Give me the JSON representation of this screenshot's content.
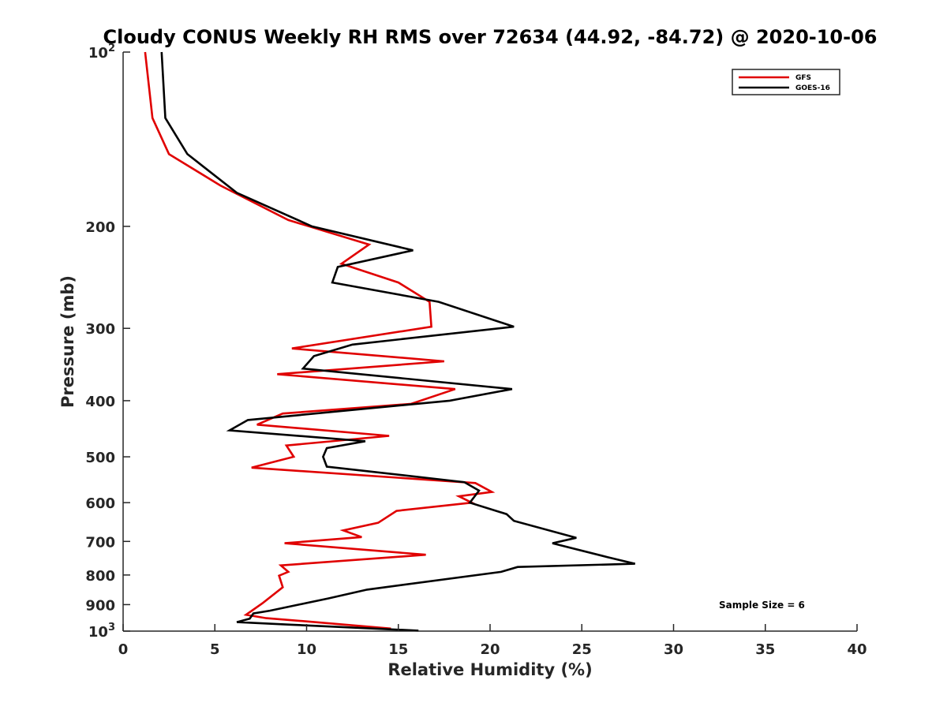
{
  "chart_data": {
    "type": "line",
    "title": "Cloudy CONUS Weekly RH RMS over 72634 (44.92, -84.72) @ 2020-10-06",
    "xlabel": "Relative Humidity (%)",
    "ylabel": "Pressure (mb)",
    "xlim": [
      0,
      40
    ],
    "ylim": [
      100,
      1000
    ],
    "yscale": "log",
    "y_reversed": true,
    "x_ticks": [
      0,
      5,
      10,
      15,
      20,
      25,
      30,
      35,
      40
    ],
    "y_ticks": [
      {
        "value": 100,
        "base": "10",
        "exp": "2"
      },
      {
        "value": 200,
        "label": "200"
      },
      {
        "value": 300,
        "label": "300"
      },
      {
        "value": 400,
        "label": "400"
      },
      {
        "value": 500,
        "label": "500"
      },
      {
        "value": 600,
        "label": "600"
      },
      {
        "value": 700,
        "label": "700"
      },
      {
        "value": 800,
        "label": "800"
      },
      {
        "value": 900,
        "label": "900"
      },
      {
        "value": 1000,
        "base": "10",
        "exp": "3"
      }
    ],
    "legend_position": "top-right",
    "annotation": "Sample Size = 6",
    "series": [
      {
        "name": "GFS",
        "color": "#e00000",
        "points": [
          [
            1.2,
            100
          ],
          [
            1.6,
            130
          ],
          [
            2.5,
            150
          ],
          [
            5.3,
            170
          ],
          [
            9.0,
            195
          ],
          [
            13.4,
            215
          ],
          [
            11.9,
            232
          ],
          [
            15.0,
            250
          ],
          [
            16.7,
            270
          ],
          [
            16.8,
            298
          ],
          [
            9.2,
            325
          ],
          [
            17.5,
            342
          ],
          [
            8.4,
            360
          ],
          [
            18.1,
            382
          ],
          [
            15.7,
            405
          ],
          [
            8.7,
            421
          ],
          [
            7.3,
            440
          ],
          [
            14.5,
            460
          ],
          [
            8.9,
            478
          ],
          [
            9.3,
            500
          ],
          [
            7.0,
            522
          ],
          [
            19.2,
            555
          ],
          [
            20.1,
            575
          ],
          [
            18.3,
            585
          ],
          [
            19.0,
            600
          ],
          [
            14.9,
            620
          ],
          [
            13.9,
            650
          ],
          [
            12.0,
            670
          ],
          [
            13.0,
            688
          ],
          [
            8.8,
            705
          ],
          [
            16.5,
            738
          ],
          [
            8.6,
            770
          ],
          [
            9.0,
            790
          ],
          [
            8.5,
            802
          ],
          [
            8.7,
            840
          ],
          [
            7.6,
            895
          ],
          [
            6.7,
            937
          ],
          [
            7.8,
            950
          ],
          [
            10.0,
            962
          ],
          [
            14.6,
            990
          ]
        ]
      },
      {
        "name": "GOES-16",
        "color": "#000000",
        "points": [
          [
            2.1,
            100
          ],
          [
            2.3,
            130
          ],
          [
            3.5,
            150
          ],
          [
            6.2,
            175
          ],
          [
            10.3,
            200
          ],
          [
            15.8,
            220
          ],
          [
            11.7,
            235
          ],
          [
            11.4,
            250
          ],
          [
            17.2,
            270
          ],
          [
            21.3,
            298
          ],
          [
            12.5,
            320
          ],
          [
            10.4,
            335
          ],
          [
            9.8,
            352
          ],
          [
            21.2,
            382
          ],
          [
            17.8,
            400
          ],
          [
            6.8,
            432
          ],
          [
            5.8,
            450
          ],
          [
            13.2,
            470
          ],
          [
            11.1,
            483
          ],
          [
            10.9,
            500
          ],
          [
            11.1,
            520
          ],
          [
            18.6,
            553
          ],
          [
            19.4,
            572
          ],
          [
            18.9,
            600
          ],
          [
            20.9,
            628
          ],
          [
            21.3,
            645
          ],
          [
            24.7,
            690
          ],
          [
            23.4,
            705
          ],
          [
            26.4,
            745
          ],
          [
            27.9,
            765
          ],
          [
            21.5,
            775
          ],
          [
            20.6,
            790
          ],
          [
            13.3,
            848
          ],
          [
            11.2,
            878
          ],
          [
            8.0,
            922
          ],
          [
            7.1,
            932
          ],
          [
            6.9,
            952
          ],
          [
            6.2,
            965
          ],
          [
            9.2,
            975
          ],
          [
            16.1,
            998
          ]
        ]
      }
    ]
  }
}
